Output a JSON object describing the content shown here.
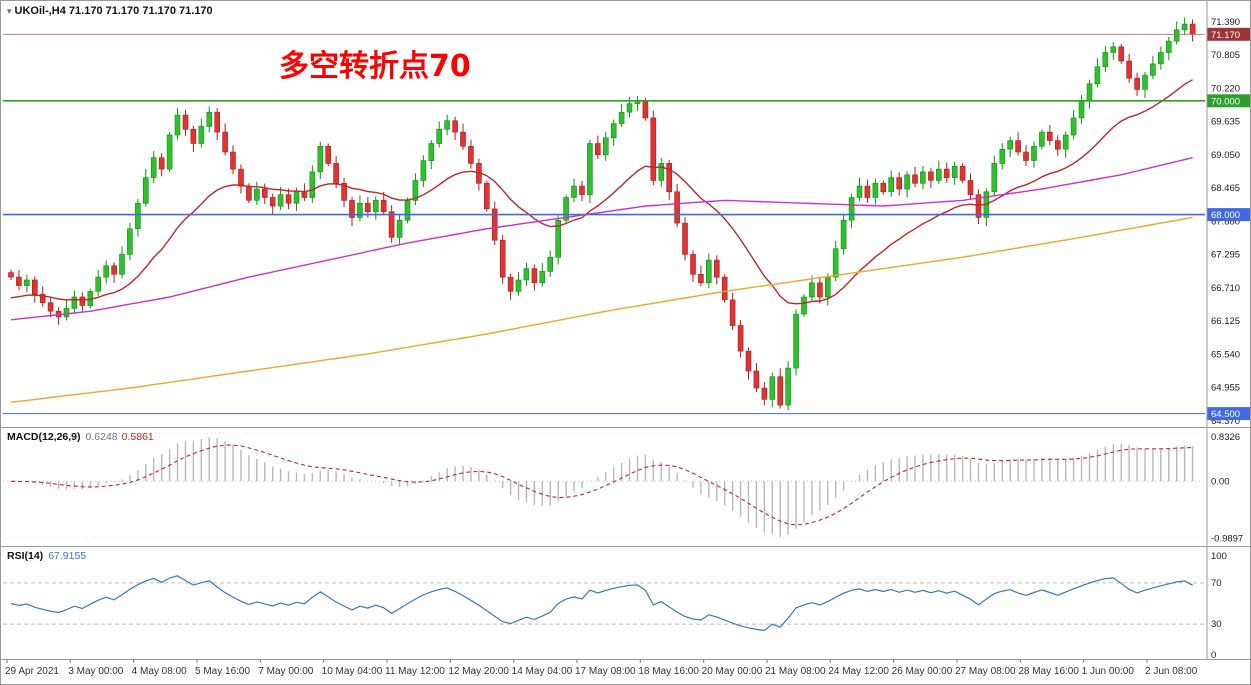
{
  "window": {
    "title": "UKOil-,H4 71.170 71.170 71.170 71.170"
  },
  "annotation": {
    "text": "多空转折点70",
    "color": "#ff0000"
  },
  "colors": {
    "bull": "#2fbf2f",
    "bull_stroke": "#119111",
    "bear": "#e23333",
    "bear_stroke": "#a81f1f",
    "ma_fast": "#c22626",
    "ma_mid": "#cc30cc",
    "ma_slow": "#eda62f",
    "line_green": "#28a428",
    "line_blue": "#4169e1",
    "badge_current": "#9c3636",
    "badge_green": "#2e9e2e",
    "badge_blue": "#4169e1",
    "macd_hist": "#b8b8b8",
    "macd_signal": "#c22626",
    "rsi_line": "#3879bd",
    "axis_text": "#1a1a1a",
    "time_text": "#333333",
    "border": "#9a9a9a"
  },
  "chart_data": {
    "type": "candlestick",
    "symbol": "UKOil-",
    "timeframe": "H4",
    "ohlc_display": {
      "open": "71.170",
      "high": "71.170",
      "low": "71.170",
      "close": "71.170"
    },
    "ylim": [
      64.3,
      71.65
    ],
    "closes": [
      66.9,
      66.75,
      66.85,
      66.6,
      66.45,
      66.3,
      66.2,
      66.35,
      66.55,
      66.4,
      66.65,
      66.9,
      67.1,
      66.95,
      67.3,
      67.75,
      68.2,
      68.65,
      69.0,
      68.8,
      69.4,
      69.75,
      69.5,
      69.25,
      69.55,
      69.8,
      69.45,
      69.1,
      68.8,
      68.5,
      68.25,
      68.45,
      68.3,
      68.15,
      68.35,
      68.2,
      68.4,
      68.3,
      68.75,
      69.2,
      68.9,
      68.55,
      68.25,
      67.95,
      68.2,
      68.05,
      68.25,
      68.05,
      67.6,
      67.9,
      68.25,
      68.6,
      68.95,
      69.25,
      69.5,
      69.65,
      69.45,
      69.2,
      68.9,
      68.55,
      68.1,
      67.55,
      66.9,
      66.65,
      66.85,
      67.05,
      66.8,
      67.0,
      67.25,
      67.9,
      68.3,
      68.5,
      68.35,
      69.25,
      69.05,
      69.35,
      69.6,
      69.8,
      69.95,
      70.0,
      69.7,
      68.6,
      68.9,
      68.4,
      67.85,
      67.3,
      66.95,
      66.8,
      67.2,
      66.9,
      66.5,
      66.05,
      65.6,
      65.25,
      64.95,
      64.75,
      65.15,
      64.65,
      65.3,
      66.25,
      66.55,
      66.8,
      66.55,
      66.9,
      67.4,
      67.9,
      68.3,
      68.5,
      68.3,
      68.55,
      68.4,
      68.65,
      68.45,
      68.7,
      68.55,
      68.75,
      68.6,
      68.8,
      68.65,
      68.85,
      68.6,
      68.35,
      67.95,
      68.4,
      68.9,
      69.15,
      69.3,
      69.1,
      68.95,
      69.2,
      69.45,
      69.3,
      69.15,
      69.4,
      69.7,
      70.0,
      70.3,
      70.6,
      70.85,
      70.95,
      70.7,
      70.4,
      70.2,
      70.45,
      70.65,
      70.85,
      71.05,
      71.25,
      71.35,
      71.17
    ],
    "ma_lines": [
      {
        "name": "fast-ma",
        "color": "#c22626",
        "period": 21,
        "seed": 66.5
      },
      {
        "name": "mid-ma",
        "color": "#cc30cc",
        "waypoints": [
          [
            0,
            66.15
          ],
          [
            10,
            66.3
          ],
          [
            20,
            66.55
          ],
          [
            30,
            66.9
          ],
          [
            40,
            67.2
          ],
          [
            50,
            67.5
          ],
          [
            60,
            67.75
          ],
          [
            70,
            67.95
          ],
          [
            80,
            68.15
          ],
          [
            90,
            68.25
          ],
          [
            100,
            68.2
          ],
          [
            110,
            68.15
          ],
          [
            120,
            68.25
          ],
          [
            130,
            68.45
          ],
          [
            140,
            68.7
          ],
          [
            149,
            69.0
          ]
        ]
      },
      {
        "name": "slow-ma",
        "color": "#eda62f",
        "waypoints": [
          [
            0,
            64.7
          ],
          [
            15,
            64.95
          ],
          [
            30,
            65.25
          ],
          [
            45,
            65.55
          ],
          [
            60,
            65.9
          ],
          [
            75,
            66.3
          ],
          [
            90,
            66.65
          ],
          [
            105,
            66.95
          ],
          [
            120,
            67.25
          ],
          [
            135,
            67.6
          ],
          [
            149,
            67.95
          ]
        ]
      }
    ],
    "hlines": [
      {
        "price": 70.0,
        "label": "70.000",
        "color": "#28a428",
        "badge": "#2e9e2e"
      },
      {
        "price": 68.0,
        "label": "68.000",
        "color": "#4169e1",
        "badge": "#4169e1"
      },
      {
        "price": 64.5,
        "label": "64.500",
        "color": "#4169e1",
        "badge": "#4169e1"
      }
    ],
    "current_price": {
      "value": 71.17,
      "label": "71.170"
    },
    "price_axis": {
      "values": [
        71.39,
        70.805,
        70.22,
        69.635,
        69.05,
        68.465,
        67.88,
        67.295,
        66.71,
        66.125,
        65.54,
        64.955,
        64.37
      ]
    },
    "time_axis": {
      "labels": [
        "29 Apr 2021",
        "3 May 00:00",
        "4 May 08:00",
        "5 May 16:00",
        "7 May 00:00",
        "10 May 04:00",
        "11 May 12:00",
        "12 May 20:00",
        "14 May 04:00",
        "17 May 08:00",
        "18 May 16:00",
        "20 May 00:00",
        "21 May 08:00",
        "24 May 12:00",
        "26 May 00:00",
        "27 May 08:00",
        "28 May 16:00",
        "1 Jun 00:00",
        "2 Jun 08:00"
      ]
    },
    "indicators": {
      "macd": {
        "label": "MACD(12,26,9)",
        "value_main": "0.6248",
        "value_signal": "0.5861",
        "fast": 12,
        "slow": 26,
        "signal": 9,
        "axis": [
          {
            "text": "0.8326",
            "value": 0.8326
          },
          {
            "text": "0.00",
            "value": 0
          },
          {
            "text": "-0.9897",
            "value": -0.9897
          }
        ]
      },
      "rsi": {
        "label": "RSI(14)",
        "value": "67.9155",
        "period": 14,
        "levels": [
          70,
          30
        ],
        "axis": [
          {
            "text": "100",
            "value": 100
          },
          {
            "text": "70",
            "value": 70
          },
          {
            "text": "30",
            "value": 30
          },
          {
            "text": "0",
            "value": 0
          }
        ]
      }
    }
  }
}
